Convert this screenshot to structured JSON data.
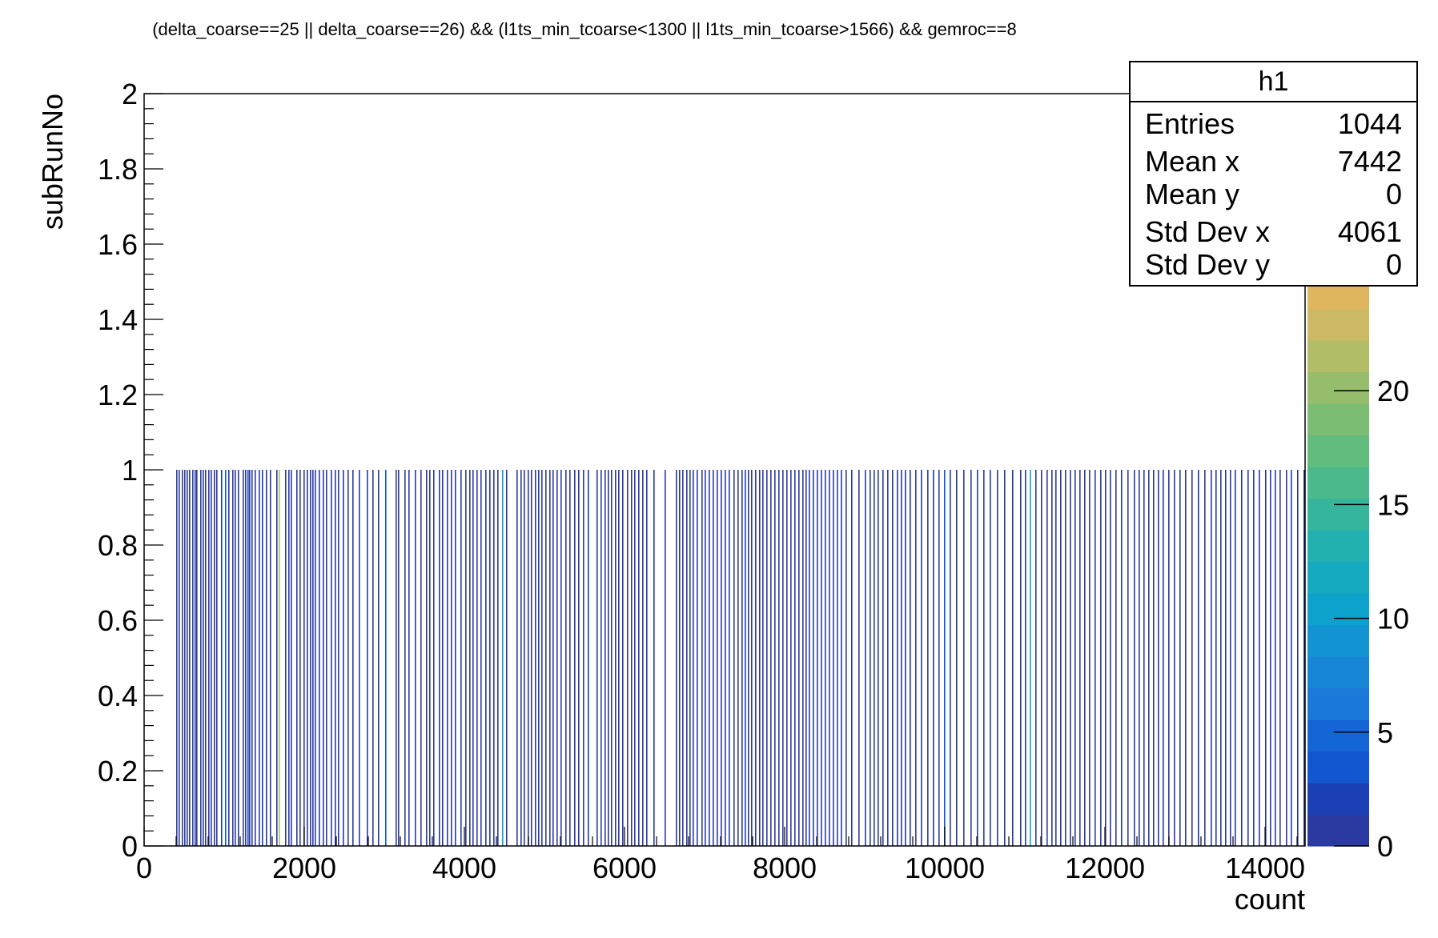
{
  "title": "(delta_coarse==25 || delta_coarse==26) && (l1ts_min_tcoarse<1300 || l1ts_min_tcoarse>1566) && gemroc==8",
  "stats_box": {
    "title": "h1",
    "rows": [
      {
        "label": "Entries",
        "value": "1044"
      },
      {
        "label": "Mean x",
        "value": "7442"
      },
      {
        "label": "Mean y",
        "value": "0"
      },
      {
        "label": "Std Dev x",
        "value": "4061"
      },
      {
        "label": "Std Dev y",
        "value": "0"
      }
    ]
  },
  "chart_data": {
    "type": "heatmap",
    "xlabel": "count",
    "ylabel": "subRunNo",
    "xlim": [
      0,
      14500
    ],
    "ylim": [
      0,
      2
    ],
    "x_ticks": [
      "0",
      "2000",
      "4000",
      "6000",
      "8000",
      "10000",
      "12000",
      "14000"
    ],
    "y_ticks": [
      "0",
      "0.2",
      "0.4",
      "0.6",
      "0.8",
      "1",
      "1.2",
      "1.4",
      "1.6",
      "1.8",
      "2"
    ],
    "z_ticks": [
      "0",
      "5",
      "10",
      "15",
      "20"
    ],
    "zlim": [
      0,
      25
    ],
    "y_bin": [
      0,
      1
    ],
    "palette": [
      "#2b3aa0",
      "#1b40b6",
      "#1357d0",
      "#1465d6",
      "#1a79d8",
      "#1786d6",
      "#1294d2",
      "#0da2cc",
      "#15aac0",
      "#23b0b0",
      "#35b59c",
      "#4bb98b",
      "#62bc7e",
      "#7bbd72",
      "#96bd6b",
      "#b3bc66",
      "#ccb964",
      "#dfb55d"
    ],
    "cells": [
      [
        400,
        1
      ],
      [
        430,
        1
      ],
      [
        470,
        1
      ],
      [
        500,
        1
      ],
      [
        530,
        1
      ],
      [
        560,
        1
      ],
      [
        600,
        1
      ],
      [
        630,
        1
      ],
      [
        650,
        1
      ],
      [
        700,
        1
      ],
      [
        730,
        1
      ],
      [
        760,
        1
      ],
      [
        800,
        1
      ],
      [
        830,
        1
      ],
      [
        870,
        1
      ],
      [
        900,
        1
      ],
      [
        960,
        2
      ],
      [
        1010,
        3
      ],
      [
        1050,
        1
      ],
      [
        1100,
        1
      ],
      [
        1130,
        1
      ],
      [
        1170,
        1
      ],
      [
        1230,
        1
      ],
      [
        1260,
        1
      ],
      [
        1290,
        2
      ],
      [
        1310,
        1
      ],
      [
        1340,
        1
      ],
      [
        1380,
        1
      ],
      [
        1430,
        1
      ],
      [
        1470,
        2
      ],
      [
        1520,
        1
      ],
      [
        1570,
        1
      ],
      [
        1650,
        1
      ],
      [
        1680,
        21
      ],
      [
        1760,
        1
      ],
      [
        1800,
        1
      ],
      [
        1830,
        1
      ],
      [
        1900,
        1
      ],
      [
        1940,
        1
      ],
      [
        1990,
        1
      ],
      [
        2030,
        1
      ],
      [
        2070,
        1
      ],
      [
        2100,
        1
      ],
      [
        2130,
        1
      ],
      [
        2180,
        1
      ],
      [
        2230,
        1
      ],
      [
        2270,
        1
      ],
      [
        2330,
        1
      ],
      [
        2380,
        1
      ],
      [
        2420,
        1
      ],
      [
        2480,
        1
      ],
      [
        2540,
        1
      ],
      [
        2600,
        1
      ],
      [
        2680,
        1
      ],
      [
        2780,
        1
      ],
      [
        2850,
        1
      ],
      [
        2920,
        1
      ],
      [
        3010,
        3
      ],
      [
        3140,
        1
      ],
      [
        3170,
        1
      ],
      [
        3250,
        1
      ],
      [
        3300,
        1
      ],
      [
        3380,
        1
      ],
      [
        3450,
        1
      ],
      [
        3520,
        1
      ],
      [
        3560,
        1
      ],
      [
        3610,
        1
      ],
      [
        3680,
        1
      ],
      [
        3720,
        1
      ],
      [
        3780,
        1
      ],
      [
        3830,
        1
      ],
      [
        3880,
        1
      ],
      [
        3950,
        1
      ],
      [
        4010,
        1
      ],
      [
        4060,
        1
      ],
      [
        4100,
        1
      ],
      [
        4150,
        1
      ],
      [
        4200,
        1
      ],
      [
        4260,
        1
      ],
      [
        4310,
        1
      ],
      [
        4360,
        1
      ],
      [
        4410,
        1
      ],
      [
        4470,
        11
      ],
      [
        4520,
        1
      ],
      [
        4650,
        1
      ],
      [
        4700,
        1
      ],
      [
        4740,
        1
      ],
      [
        4790,
        1
      ],
      [
        4830,
        1
      ],
      [
        4880,
        1
      ],
      [
        4920,
        1
      ],
      [
        4960,
        1
      ],
      [
        5010,
        1
      ],
      [
        5060,
        1
      ],
      [
        5100,
        1
      ],
      [
        5150,
        1
      ],
      [
        5200,
        1
      ],
      [
        5260,
        1
      ],
      [
        5310,
        1
      ],
      [
        5370,
        1
      ],
      [
        5420,
        1
      ],
      [
        5480,
        1
      ],
      [
        5540,
        1
      ],
      [
        5650,
        1
      ],
      [
        5700,
        1
      ],
      [
        5750,
        1
      ],
      [
        5790,
        1
      ],
      [
        5830,
        1
      ],
      [
        5880,
        1
      ],
      [
        5920,
        1
      ],
      [
        5970,
        1
      ],
      [
        6030,
        1
      ],
      [
        6080,
        1
      ],
      [
        6120,
        1
      ],
      [
        6170,
        1
      ],
      [
        6220,
        1
      ],
      [
        6270,
        1
      ],
      [
        6360,
        1
      ],
      [
        6500,
        1
      ],
      [
        6640,
        1
      ],
      [
        6680,
        1
      ],
      [
        6720,
        1
      ],
      [
        6770,
        1
      ],
      [
        6810,
        1
      ],
      [
        6850,
        1
      ],
      [
        6900,
        1
      ],
      [
        6960,
        1
      ],
      [
        7000,
        1
      ],
      [
        7050,
        1
      ],
      [
        7100,
        1
      ],
      [
        7150,
        1
      ],
      [
        7200,
        1
      ],
      [
        7250,
        1
      ],
      [
        7300,
        1
      ],
      [
        7360,
        1
      ],
      [
        7410,
        1
      ],
      [
        7460,
        1
      ],
      [
        7500,
        2
      ],
      [
        7540,
        1
      ],
      [
        7580,
        1
      ],
      [
        7630,
        1
      ],
      [
        7680,
        1
      ],
      [
        7720,
        1
      ],
      [
        7770,
        1
      ],
      [
        7820,
        1
      ],
      [
        7870,
        1
      ],
      [
        7920,
        1
      ],
      [
        7970,
        1
      ],
      [
        8020,
        1
      ],
      [
        8070,
        1
      ],
      [
        8120,
        1
      ],
      [
        8170,
        1
      ],
      [
        8220,
        1
      ],
      [
        8260,
        1
      ],
      [
        8300,
        1
      ],
      [
        8350,
        1
      ],
      [
        8400,
        1
      ],
      [
        8450,
        1
      ],
      [
        8500,
        1
      ],
      [
        8550,
        1
      ],
      [
        8600,
        1
      ],
      [
        8650,
        1
      ],
      [
        8700,
        1
      ],
      [
        8760,
        1
      ],
      [
        8830,
        1
      ],
      [
        8920,
        1
      ],
      [
        9000,
        1
      ],
      [
        9060,
        1
      ],
      [
        9110,
        1
      ],
      [
        9160,
        1
      ],
      [
        9220,
        1
      ],
      [
        9280,
        1
      ],
      [
        9340,
        1
      ],
      [
        9400,
        1
      ],
      [
        9450,
        1
      ],
      [
        9500,
        1
      ],
      [
        9560,
        1
      ],
      [
        9630,
        1
      ],
      [
        9700,
        1
      ],
      [
        9780,
        1
      ],
      [
        9850,
        1
      ],
      [
        9920,
        1
      ],
      [
        9990,
        3
      ],
      [
        10060,
        1
      ],
      [
        10140,
        1
      ],
      [
        10230,
        1
      ],
      [
        10320,
        1
      ],
      [
        10400,
        1
      ],
      [
        10480,
        1
      ],
      [
        10560,
        1
      ],
      [
        10650,
        1
      ],
      [
        10740,
        1
      ],
      [
        10840,
        1
      ],
      [
        10940,
        1
      ],
      [
        11000,
        1
      ],
      [
        11060,
        11
      ],
      [
        11130,
        1
      ],
      [
        11200,
        1
      ],
      [
        11270,
        1
      ],
      [
        11330,
        1
      ],
      [
        11380,
        1
      ],
      [
        11440,
        1
      ],
      [
        11500,
        1
      ],
      [
        11560,
        1
      ],
      [
        11620,
        1
      ],
      [
        11680,
        1
      ],
      [
        11740,
        1
      ],
      [
        11800,
        1
      ],
      [
        11870,
        1
      ],
      [
        11940,
        1
      ],
      [
        12000,
        1
      ],
      [
        12060,
        1
      ],
      [
        12130,
        1
      ],
      [
        12200,
        1
      ],
      [
        12280,
        1
      ],
      [
        12360,
        1
      ],
      [
        12420,
        1
      ],
      [
        12480,
        1
      ],
      [
        12540,
        1
      ],
      [
        12600,
        1
      ],
      [
        12660,
        1
      ],
      [
        12720,
        1
      ],
      [
        12790,
        1
      ],
      [
        12860,
        1
      ],
      [
        12930,
        1
      ],
      [
        13000,
        1
      ],
      [
        13080,
        1
      ],
      [
        13160,
        1
      ],
      [
        13240,
        1
      ],
      [
        13320,
        1
      ],
      [
        13380,
        1
      ],
      [
        13440,
        1
      ],
      [
        13500,
        1
      ],
      [
        13560,
        1
      ],
      [
        13620,
        1
      ],
      [
        13700,
        1
      ],
      [
        13780,
        1
      ],
      [
        13850,
        1
      ],
      [
        13920,
        1
      ],
      [
        14000,
        1
      ],
      [
        14060,
        1
      ],
      [
        14120,
        1
      ],
      [
        14180,
        1
      ],
      [
        14260,
        1
      ],
      [
        14320,
        1
      ],
      [
        14400,
        1
      ],
      [
        14480,
        1
      ],
      [
        14530,
        1
      ]
    ]
  }
}
